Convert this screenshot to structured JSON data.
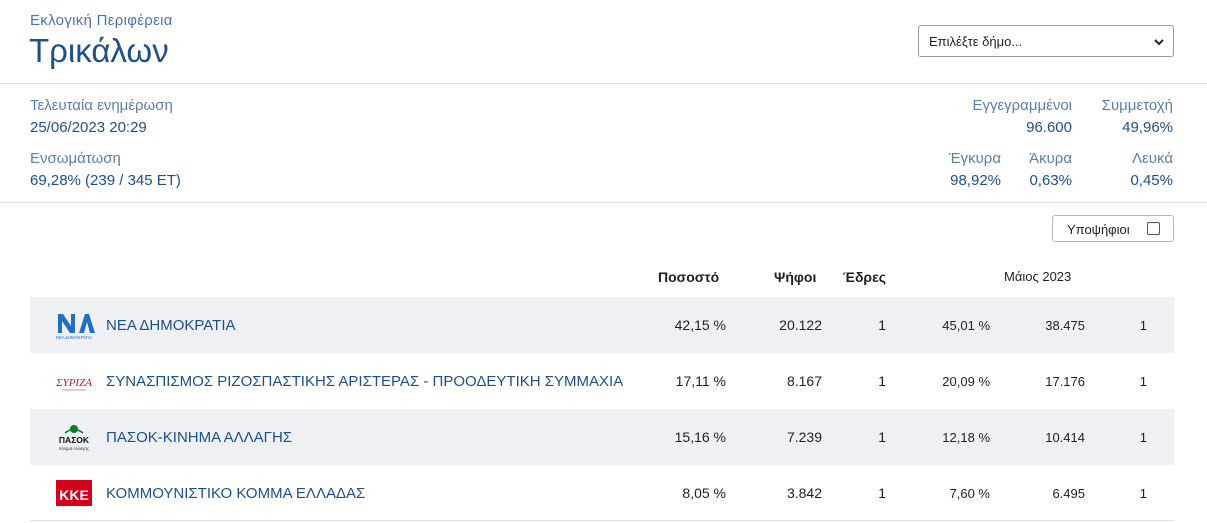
{
  "header": {
    "region_label": "Εκλογική Περιφέρεια",
    "region_name": "Τρικάλων",
    "municipality_select": "Επιλέξτε δήμο..."
  },
  "stats": {
    "last_update_label": "Τελευταία ενημέρωση",
    "last_update_value": "25/06/2023 20:29",
    "integration_label": "Ενσωμάτωση",
    "integration_value": "69,28% (239 / 345 ΕΤ)",
    "registered_label": "Εγγεγραμμένοι",
    "registered_value": "96.600",
    "turnout_label": "Συμμετοχή",
    "turnout_value": "49,96%",
    "valid_label": "Έγκυρα",
    "valid_value": "98,92%",
    "invalid_label": "Άκυρα",
    "invalid_value": "0,63%",
    "blank_label": "Λευκά",
    "blank_value": "0,45%"
  },
  "candidates_toggle": {
    "label": "Υποψήφιοι",
    "checked": false
  },
  "table": {
    "headers": {
      "percent": "Ποσοστό",
      "votes": "Ψήφοι",
      "seats": "Έδρες",
      "previous": "Μάιος 2023"
    },
    "rows": [
      {
        "party": "ΝΕΑ ΔΗΜΟΚΡΑΤΙΑ",
        "logo_text": "ΝΔ",
        "logo_sub": "ΝΕΑ ΔΗΜΟΚΡΑΤΙΑ",
        "percent": "42,15 %",
        "votes": "20.122",
        "seats": "1",
        "prev_percent": "45,01 %",
        "prev_votes": "38.475",
        "prev_seats": "1"
      },
      {
        "party": "ΣΥΝΑΣΠΙΣΜΟΣ ΡΙΖΟΣΠΑΣΤΙΚΗΣ ΑΡΙΣΤΕΡΑΣ - ΠΡΟΟΔΕΥΤΙΚΗ ΣΥΜΜΑΧΙΑ",
        "logo_text": "ΣΥΡΙΖΑ",
        "percent": "17,11 %",
        "votes": "8.167",
        "seats": "1",
        "prev_percent": "20,09 %",
        "prev_votes": "17.176",
        "prev_seats": "1"
      },
      {
        "party": "ΠΑΣΟΚ-ΚΙΝΗΜΑ ΑΛΛΑΓΗΣ",
        "logo_text": "ΠΑΣΟΚ",
        "logo_sub": "Κίνημα Αλλαγής",
        "percent": "15,16 %",
        "votes": "7.239",
        "seats": "1",
        "prev_percent": "12,18 %",
        "prev_votes": "10.414",
        "prev_seats": "1"
      },
      {
        "party": "ΚΟΜΜΟΥΝΙΣΤΙΚΟ ΚΟΜΜΑ ΕΛΛΑΔΑΣ",
        "logo_text": "ΚΚΕ",
        "percent": "8,05 %",
        "votes": "3.842",
        "seats": "1",
        "prev_percent": "7,60 %",
        "prev_votes": "6.495",
        "prev_seats": "1"
      }
    ]
  },
  "colors": {
    "accent": "#1d4f8a",
    "label": "#5a7eb0",
    "row_shade": "#eef0f3",
    "nd": "#1f6fc4",
    "syriza": "#c0143c",
    "pasok": "#0a7a2f",
    "kke": "#d3001c"
  }
}
